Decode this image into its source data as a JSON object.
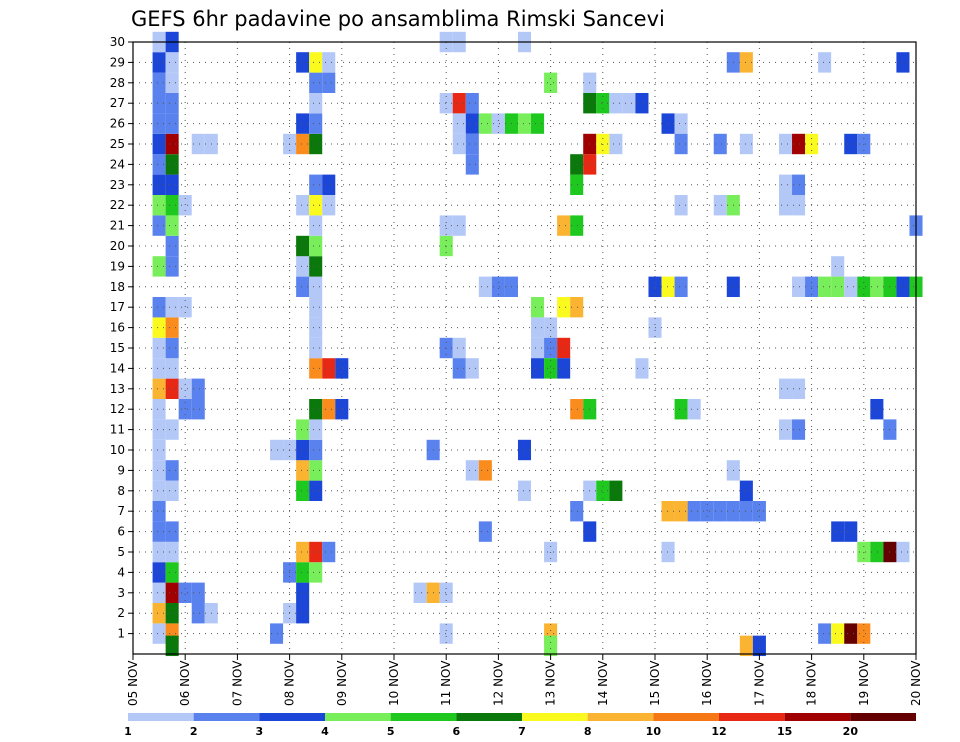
{
  "chart_data": {
    "type": "heatmap",
    "title": "GEFS 6hr padavine po ansamblima Rimski Sancevi",
    "y_ticks": [
      "1",
      "2",
      "3",
      "4",
      "5",
      "6",
      "7",
      "8",
      "9",
      "10",
      "11",
      "12",
      "13",
      "14",
      "15",
      "16",
      "17",
      "18",
      "19",
      "20",
      "21",
      "22",
      "23",
      "24",
      "25",
      "26",
      "27",
      "28",
      "29",
      "30"
    ],
    "x_ticks": [
      "05 NOV",
      "06 NOV",
      "07 NOV",
      "08 NOV",
      "09 NOV",
      "10 NOV",
      "11 NOV",
      "12 NOV",
      "13 NOV",
      "14 NOV",
      "15 NOV",
      "16 NOV",
      "17 NOV",
      "18 NOV",
      "19 NOV",
      "20 NOV"
    ],
    "x_range": [
      0,
      15
    ],
    "y_range": [
      0,
      30
    ],
    "grid": true,
    "colorbar": {
      "labels": [
        "1",
        "2",
        "3",
        "4",
        "5",
        "6",
        "7",
        "8",
        "10",
        "12",
        "15",
        "20"
      ],
      "colors": [
        "#b4c8f8",
        "#5a82ee",
        "#1c46d8",
        "#78ee5a",
        "#1ec81e",
        "#0a780a",
        "#fafa1e",
        "#fab432",
        "#f57814",
        "#e62814",
        "#a00000",
        "#640000"
      ]
    },
    "cells": [
      [
        0.5,
        1,
        "#b4c8f8"
      ],
      [
        0.75,
        1,
        "#fa8c1e"
      ],
      [
        0.5,
        2,
        "#fab432"
      ],
      [
        0.75,
        2,
        "#0a780a"
      ],
      [
        0.5,
        3,
        "#b4c8f8"
      ],
      [
        0.75,
        3,
        "#a00000"
      ],
      [
        0.5,
        4,
        "#1c46d8"
      ],
      [
        0.75,
        4,
        "#1ec81e"
      ],
      [
        0.5,
        5,
        "#b4c8f8"
      ],
      [
        0.75,
        5,
        "#b4c8f8"
      ],
      [
        0.5,
        6,
        "#5a82ee"
      ],
      [
        0.75,
        6,
        "#5a82ee"
      ],
      [
        0.5,
        7,
        "#5a82ee"
      ],
      [
        0.5,
        8,
        "#b4c8f8"
      ],
      [
        0.75,
        8,
        "#b4c8f8"
      ],
      [
        0.5,
        9,
        "#b4c8f8"
      ],
      [
        0.75,
        9,
        "#5a82ee"
      ],
      [
        0.5,
        10,
        "#b4c8f8"
      ],
      [
        0.5,
        11,
        "#b4c8f8"
      ],
      [
        0.75,
        11,
        "#b4c8f8"
      ],
      [
        0.5,
        12,
        "#b4c8f8"
      ],
      [
        0.5,
        13,
        "#fab432"
      ],
      [
        0.75,
        13,
        "#e62814"
      ],
      [
        0.5,
        14,
        "#b4c8f8"
      ],
      [
        0.75,
        14,
        "#b4c8f8"
      ],
      [
        0.5,
        15,
        "#b4c8f8"
      ],
      [
        0.75,
        15,
        "#5a82ee"
      ],
      [
        0.5,
        16,
        "#fafa1e"
      ],
      [
        0.75,
        16,
        "#fa8c1e"
      ],
      [
        0.5,
        17,
        "#5a82ee"
      ],
      [
        0.75,
        17,
        "#b4c8f8"
      ],
      [
        0.5,
        19,
        "#78ee5a"
      ],
      [
        0.75,
        19,
        "#5a82ee"
      ],
      [
        0.75,
        20,
        "#5a82ee"
      ],
      [
        0.5,
        21,
        "#5a82ee"
      ],
      [
        0.75,
        21,
        "#78ee5a"
      ],
      [
        0.5,
        22,
        "#78ee5a"
      ],
      [
        0.75,
        22,
        "#1ec81e"
      ],
      [
        0.5,
        23,
        "#1c46d8"
      ],
      [
        0.75,
        23,
        "#1c46d8"
      ],
      [
        0.5,
        24,
        "#5a82ee"
      ],
      [
        0.75,
        24,
        "#0a780a"
      ],
      [
        0.5,
        25,
        "#1c46d8"
      ],
      [
        0.75,
        25,
        "#a00000"
      ],
      [
        0.5,
        26,
        "#5a82ee"
      ],
      [
        0.75,
        26,
        "#5a82ee"
      ],
      [
        0.5,
        27,
        "#5a82ee"
      ],
      [
        0.75,
        27,
        "#5a82ee"
      ],
      [
        0.5,
        28,
        "#5a82ee"
      ],
      [
        0.75,
        28,
        "#b4c8f8"
      ],
      [
        0.5,
        29,
        "#1c46d8"
      ],
      [
        0.75,
        29,
        "#b4c8f8"
      ],
      [
        0.5,
        30,
        "#b4c8f8"
      ],
      [
        0.75,
        30,
        "#1c46d8"
      ],
      [
        0.75,
        0.4,
        "#0a780a"
      ],
      [
        1.0,
        12,
        "#5a82ee"
      ],
      [
        1.25,
        12,
        "#5a82ee"
      ],
      [
        1.0,
        13,
        "#b4c8f8"
      ],
      [
        1.25,
        13,
        "#5a82ee"
      ],
      [
        1.0,
        3,
        "#5a82ee"
      ],
      [
        1.25,
        3,
        "#5a82ee"
      ],
      [
        1.25,
        2,
        "#5a82ee"
      ],
      [
        1.5,
        2,
        "#b4c8f8"
      ],
      [
        1.0,
        17,
        "#b4c8f8"
      ],
      [
        1.0,
        22,
        "#b4c8f8"
      ],
      [
        1.25,
        25,
        "#b4c8f8"
      ],
      [
        1.5,
        25,
        "#b4c8f8"
      ],
      [
        2.75,
        1,
        "#5a82ee"
      ],
      [
        2.75,
        10,
        "#b4c8f8"
      ],
      [
        3.0,
        10,
        "#b4c8f8"
      ],
      [
        3.0,
        2,
        "#b4c8f8"
      ],
      [
        3.25,
        2,
        "#1c46d8"
      ],
      [
        3.25,
        3,
        "#1c46d8"
      ],
      [
        3.0,
        4,
        "#5a82ee"
      ],
      [
        3.25,
        4,
        "#1ec81e"
      ],
      [
        3.5,
        4,
        "#78ee5a"
      ],
      [
        3.25,
        5,
        "#fab432"
      ],
      [
        3.5,
        5,
        "#e62814"
      ],
      [
        3.75,
        5,
        "#5a82ee"
      ],
      [
        3.25,
        8,
        "#1ec81e"
      ],
      [
        3.5,
        8,
        "#1c46d8"
      ],
      [
        3.25,
        9,
        "#fab432"
      ],
      [
        3.5,
        9,
        "#78ee5a"
      ],
      [
        3.25,
        10,
        "#1c46d8"
      ],
      [
        3.5,
        10,
        "#5a82ee"
      ],
      [
        3.25,
        11,
        "#78ee5a"
      ],
      [
        3.5,
        11,
        "#b4c8f8"
      ],
      [
        3.5,
        12,
        "#0a780a"
      ],
      [
        3.75,
        12,
        "#fa8c1e"
      ],
      [
        4.0,
        12,
        "#1c46d8"
      ],
      [
        3.5,
        14,
        "#fa8c1e"
      ],
      [
        3.75,
        14,
        "#e62814"
      ],
      [
        4.0,
        14,
        "#1c46d8"
      ],
      [
        3.5,
        15,
        "#b4c8f8"
      ],
      [
        3.5,
        16,
        "#b4c8f8"
      ],
      [
        3.5,
        17,
        "#b4c8f8"
      ],
      [
        3.25,
        18,
        "#5a82ee"
      ],
      [
        3.5,
        18,
        "#b4c8f8"
      ],
      [
        3.25,
        19,
        "#b4c8f8"
      ],
      [
        3.5,
        19,
        "#0a780a"
      ],
      [
        3.25,
        20,
        "#0a780a"
      ],
      [
        3.5,
        20,
        "#78ee5a"
      ],
      [
        3.5,
        21,
        "#b4c8f8"
      ],
      [
        3.25,
        22,
        "#b4c8f8"
      ],
      [
        3.5,
        22,
        "#fafa1e"
      ],
      [
        3.75,
        22,
        "#b4c8f8"
      ],
      [
        3.5,
        23,
        "#5a82ee"
      ],
      [
        3.75,
        23,
        "#1c46d8"
      ],
      [
        3.0,
        25,
        "#b4c8f8"
      ],
      [
        3.25,
        25,
        "#fa8c1e"
      ],
      [
        3.5,
        25,
        "#0a780a"
      ],
      [
        3.25,
        26,
        "#1c46d8"
      ],
      [
        3.5,
        26,
        "#5a82ee"
      ],
      [
        3.5,
        27,
        "#b4c8f8"
      ],
      [
        3.5,
        28,
        "#5a82ee"
      ],
      [
        3.75,
        28,
        "#5a82ee"
      ],
      [
        3.25,
        29,
        "#1c46d8"
      ],
      [
        3.5,
        29,
        "#fafa1e"
      ],
      [
        3.75,
        29,
        "#b4c8f8"
      ],
      [
        5.5,
        3,
        "#b4c8f8"
      ],
      [
        5.75,
        3,
        "#fab432"
      ],
      [
        6.0,
        3,
        "#b4c8f8"
      ],
      [
        5.75,
        10,
        "#5a82ee"
      ],
      [
        6.0,
        1,
        "#b4c8f8"
      ],
      [
        6.0,
        15,
        "#5a82ee"
      ],
      [
        6.25,
        15,
        "#b4c8f8"
      ],
      [
        6.0,
        20,
        "#78ee5a"
      ],
      [
        6.0,
        21,
        "#b4c8f8"
      ],
      [
        6.25,
        21,
        "#b4c8f8"
      ],
      [
        6.0,
        27,
        "#b4c8f8"
      ],
      [
        6.25,
        27,
        "#e62814"
      ],
      [
        6.5,
        27,
        "#5a82ee"
      ],
      [
        6.25,
        26,
        "#b4c8f8"
      ],
      [
        6.5,
        26,
        "#1c46d8"
      ],
      [
        6.75,
        26,
        "#78ee5a"
      ],
      [
        7.0,
        26,
        "#b4c8f8"
      ],
      [
        7.25,
        26,
        "#1ec81e"
      ],
      [
        7.5,
        26,
        "#78ee5a"
      ],
      [
        7.75,
        26,
        "#1ec81e"
      ],
      [
        6.25,
        25,
        "#b4c8f8"
      ],
      [
        6.5,
        25,
        "#5a82ee"
      ],
      [
        6.5,
        24,
        "#5a82ee"
      ],
      [
        6.0,
        30,
        "#b4c8f8"
      ],
      [
        6.25,
        30,
        "#b4c8f8"
      ],
      [
        7.5,
        30,
        "#b4c8f8"
      ],
      [
        6.25,
        14,
        "#5a82ee"
      ],
      [
        6.5,
        14,
        "#b4c8f8"
      ],
      [
        6.75,
        18,
        "#b4c8f8"
      ],
      [
        7.0,
        18,
        "#5a82ee"
      ],
      [
        7.25,
        18,
        "#5a82ee"
      ],
      [
        6.5,
        9,
        "#b4c8f8"
      ],
      [
        6.75,
        9,
        "#fa8c1e"
      ],
      [
        6.75,
        6,
        "#5a82ee"
      ],
      [
        7.5,
        10,
        "#1c46d8"
      ],
      [
        7.5,
        8,
        "#b4c8f8"
      ],
      [
        8.0,
        5,
        "#b4c8f8"
      ],
      [
        8.0,
        1,
        "#fab432"
      ],
      [
        8.0,
        0.4,
        "#78ee5a"
      ],
      [
        7.75,
        17,
        "#78ee5a"
      ],
      [
        8.0,
        16,
        "#b4c8f8"
      ],
      [
        7.75,
        16,
        "#b4c8f8"
      ],
      [
        7.75,
        15,
        "#b4c8f8"
      ],
      [
        8.0,
        15,
        "#5a82ee"
      ],
      [
        8.25,
        15,
        "#e62814"
      ],
      [
        7.75,
        14,
        "#1c46d8"
      ],
      [
        8.0,
        14,
        "#1ec81e"
      ],
      [
        8.25,
        14,
        "#1c46d8"
      ],
      [
        8.25,
        17,
        "#fafa1e"
      ],
      [
        8.5,
        17,
        "#fab432"
      ],
      [
        8.0,
        28,
        "#78ee5a"
      ],
      [
        8.25,
        21,
        "#fab432"
      ],
      [
        8.5,
        21,
        "#1ec81e"
      ],
      [
        8.5,
        12,
        "#fa8c1e"
      ],
      [
        8.75,
        12,
        "#1ec81e"
      ],
      [
        8.5,
        7,
        "#5a82ee"
      ],
      [
        8.75,
        8,
        "#b4c8f8"
      ],
      [
        9.0,
        8,
        "#1ec81e"
      ],
      [
        9.25,
        8,
        "#0a780a"
      ],
      [
        8.75,
        6,
        "#1c46d8"
      ],
      [
        8.75,
        28,
        "#b4c8f8"
      ],
      [
        8.5,
        23,
        "#1ec81e"
      ],
      [
        8.5,
        24,
        "#0a780a"
      ],
      [
        8.75,
        24,
        "#e62814"
      ],
      [
        8.75,
        25,
        "#a00000"
      ],
      [
        9.0,
        25,
        "#fafa1e"
      ],
      [
        9.25,
        25,
        "#b4c8f8"
      ],
      [
        8.75,
        27,
        "#0a780a"
      ],
      [
        9.0,
        27,
        "#1ec81e"
      ],
      [
        9.25,
        27,
        "#b4c8f8"
      ],
      [
        9.5,
        27,
        "#b4c8f8"
      ],
      [
        9.75,
        27,
        "#1c46d8"
      ],
      [
        9.75,
        14,
        "#b4c8f8"
      ],
      [
        10.0,
        16,
        "#b4c8f8"
      ],
      [
        10.0,
        18,
        "#1c46d8"
      ],
      [
        10.25,
        18,
        "#fafa1e"
      ],
      [
        10.5,
        18,
        "#5a82ee"
      ],
      [
        11.5,
        18,
        "#1c46d8"
      ],
      [
        10.25,
        5,
        "#b4c8f8"
      ],
      [
        10.25,
        7,
        "#fab432"
      ],
      [
        10.5,
        7,
        "#fab432"
      ],
      [
        10.75,
        7,
        "#5a82ee"
      ],
      [
        11.0,
        7,
        "#5a82ee"
      ],
      [
        11.25,
        7,
        "#5a82ee"
      ],
      [
        11.5,
        7,
        "#5a82ee"
      ],
      [
        11.75,
        7,
        "#5a82ee"
      ],
      [
        12.0,
        7,
        "#5a82ee"
      ],
      [
        11.75,
        8,
        "#1c46d8"
      ],
      [
        10.5,
        12,
        "#1ec81e"
      ],
      [
        10.75,
        12,
        "#b4c8f8"
      ],
      [
        10.25,
        26,
        "#1c46d8"
      ],
      [
        10.5,
        26,
        "#b4c8f8"
      ],
      [
        10.5,
        25,
        "#5a82ee"
      ],
      [
        10.5,
        22,
        "#b4c8f8"
      ],
      [
        11.25,
        22,
        "#b4c8f8"
      ],
      [
        11.5,
        22,
        "#78ee5a"
      ],
      [
        11.25,
        25,
        "#5a82ee"
      ],
      [
        11.75,
        25,
        "#b4c8f8"
      ],
      [
        11.5,
        29,
        "#5a82ee"
      ],
      [
        11.75,
        29,
        "#fab432"
      ],
      [
        11.5,
        9,
        "#b4c8f8"
      ],
      [
        11.75,
        0.4,
        "#fab432"
      ],
      [
        12.0,
        0.4,
        "#1c46d8"
      ],
      [
        12.5,
        13,
        "#b4c8f8"
      ],
      [
        12.75,
        13,
        "#b4c8f8"
      ],
      [
        12.5,
        11,
        "#b4c8f8"
      ],
      [
        12.75,
        11,
        "#5a82ee"
      ],
      [
        12.5,
        22,
        "#b4c8f8"
      ],
      [
        12.75,
        22,
        "#b4c8f8"
      ],
      [
        12.75,
        23,
        "#5a82ee"
      ],
      [
        12.5,
        23,
        "#b4c8f8"
      ],
      [
        12.5,
        25,
        "#b4c8f8"
      ],
      [
        12.75,
        25,
        "#a00000"
      ],
      [
        13.0,
        25,
        "#fafa1e"
      ],
      [
        13.25,
        29,
        "#b4c8f8"
      ],
      [
        12.75,
        18,
        "#b4c8f8"
      ],
      [
        13.0,
        18,
        "#5a82ee"
      ],
      [
        13.25,
        18,
        "#78ee5a"
      ],
      [
        13.5,
        18,
        "#78ee5a"
      ],
      [
        13.75,
        18,
        "#b4c8f8"
      ],
      [
        14.0,
        18,
        "#1ec81e"
      ],
      [
        14.25,
        18,
        "#78ee5a"
      ],
      [
        14.5,
        18,
        "#1ec81e"
      ],
      [
        14.75,
        18,
        "#1c46d8"
      ],
      [
        15.0,
        18,
        "#1ec81e"
      ],
      [
        13.5,
        19,
        "#b4c8f8"
      ],
      [
        13.25,
        1,
        "#5a82ee"
      ],
      [
        13.5,
        1,
        "#fafa1e"
      ],
      [
        13.75,
        1,
        "#640000"
      ],
      [
        14.0,
        1,
        "#fa8c1e"
      ],
      [
        13.5,
        6,
        "#1c46d8"
      ],
      [
        13.75,
        6,
        "#1c46d8"
      ],
      [
        14.0,
        5,
        "#78ee5a"
      ],
      [
        14.25,
        5,
        "#1ec81e"
      ],
      [
        14.5,
        5,
        "#640000"
      ],
      [
        14.75,
        5,
        "#b4c8f8"
      ],
      [
        14.5,
        11,
        "#5a82ee"
      ],
      [
        14.25,
        12,
        "#1c46d8"
      ],
      [
        13.75,
        25,
        "#1c46d8"
      ],
      [
        14.0,
        25,
        "#5a82ee"
      ],
      [
        14.75,
        29,
        "#1c46d8"
      ],
      [
        15.0,
        21,
        "#5a82ee"
      ]
    ]
  }
}
